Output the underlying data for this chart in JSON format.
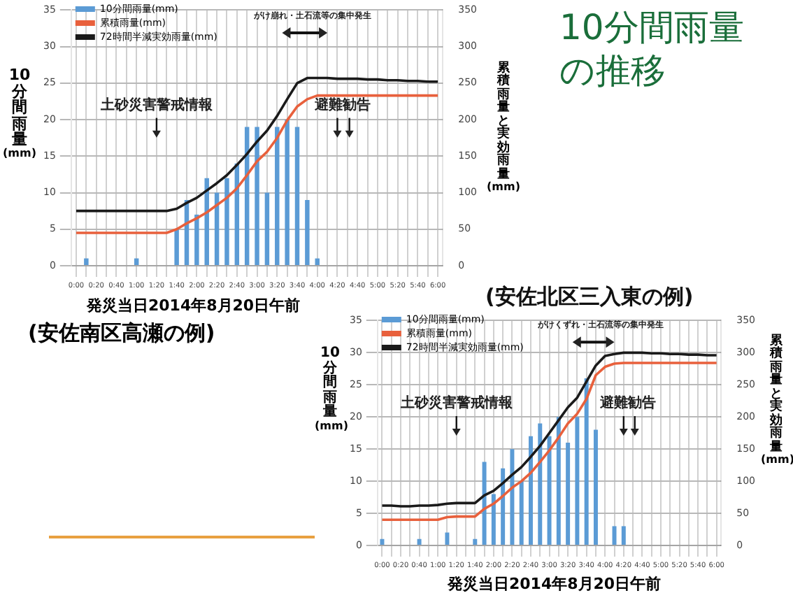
{
  "chart_data": [
    {
      "type": "bar",
      "subtitle": "(安佐南区高瀬の例)",
      "xlabel": "発災当日2014年8月20日午前",
      "ylabel": "10分間雨量(mm)",
      "y2label": "累積雨量と実効雨量(mm)",
      "categories": [
        "0:00",
        null,
        "0:20",
        null,
        "0:40",
        null,
        "1:00",
        null,
        "1:20",
        null,
        "1:40",
        null,
        "2:00",
        null,
        "2:20",
        null,
        "2:40",
        null,
        "3:00",
        null,
        "3:20",
        null,
        "3:40",
        null,
        "4:00",
        null,
        "4:20",
        null,
        "4:40",
        null,
        "5:00",
        null,
        "5:20",
        null,
        "5:40",
        null,
        "6:00"
      ],
      "series": [
        {
          "name": "10分間雨量(mm)",
          "type": "bar",
          "color": "#5b9bd5",
          "values": [
            0,
            1,
            0,
            0,
            0,
            0,
            1,
            0,
            0,
            0,
            5,
            9,
            7,
            12,
            10,
            12,
            14,
            19,
            19,
            10,
            19,
            20,
            19,
            9,
            1,
            0,
            0,
            0,
            0,
            0,
            0,
            0,
            0,
            0,
            0,
            0,
            0
          ]
        },
        {
          "name": "累積雨量(mm)",
          "type": "line",
          "axis": "y2",
          "color": "#e8603c",
          "values": [
            45,
            45,
            45,
            45,
            45,
            45,
            45,
            45,
            45,
            45,
            50,
            58,
            65,
            73,
            83,
            93,
            106,
            124,
            143,
            156,
            175,
            199,
            218,
            228,
            233,
            233,
            233,
            233,
            233,
            233,
            233,
            233,
            233,
            233,
            233,
            233,
            233
          ]
        },
        {
          "name": "72時間半減実効雨量(mm)",
          "type": "line",
          "axis": "y2",
          "color": "#1a1a1a",
          "values": [
            75,
            75,
            75,
            75,
            75,
            75,
            75,
            75,
            75,
            75,
            78,
            86,
            93,
            103,
            113,
            124,
            138,
            153,
            170,
            185,
            205,
            228,
            250,
            257,
            257,
            257,
            256,
            256,
            256,
            255,
            255,
            254,
            254,
            253,
            253,
            252,
            252
          ]
        }
      ],
      "ylim": [
        0,
        35
      ],
      "yticks": [
        0,
        5,
        10,
        15,
        20,
        25,
        30,
        35
      ],
      "y2lim": [
        0,
        350
      ],
      "y2ticks": [
        0,
        50,
        100,
        150,
        200,
        250,
        300,
        350
      ],
      "grid": true,
      "legend": "top left",
      "marker": "none",
      "annotations": [
        "がけ崩れ・土石流等の集中発生",
        "土砂災害警戒情報",
        "避難勧告"
      ]
    },
    {
      "type": "other",
      "title": "10分間雨量の推移"
    },
    {
      "type": "bar",
      "title": "(安佐北区三入東の例)",
      "xlabel": "発災当日2014年8月20日午前",
      "ylabel": "10分間雨量(mm)",
      "y2label": "累積雨量と実効雨量(mm)",
      "categories": [
        "0:00",
        null,
        "0:20",
        null,
        "0:40",
        null,
        "1:00",
        null,
        "1:20",
        null,
        "1:40",
        null,
        "2:00",
        null,
        "2:20",
        null,
        "2:40",
        null,
        "3:00",
        null,
        "3:20",
        null,
        "3:40",
        null,
        "4:00",
        null,
        "4:20",
        null,
        "4:40",
        null,
        "5:00",
        null,
        "5:20",
        null,
        "5:40",
        null,
        "6:00"
      ],
      "series": [
        {
          "name": "10分間雨量(mm)",
          "type": "bar",
          "color": "#5b9bd5",
          "values": [
            1,
            0,
            0,
            0,
            1,
            0,
            0,
            2,
            0,
            0,
            1,
            13,
            8,
            12,
            15,
            10,
            17,
            19,
            17,
            20,
            16,
            20,
            26,
            18,
            0,
            3,
            3,
            0,
            0,
            0,
            0,
            0,
            0,
            0,
            0,
            0,
            0
          ]
        },
        {
          "name": "累積雨量(mm)",
          "type": "line",
          "axis": "y2",
          "color": "#e8603c",
          "values": [
            40,
            40,
            40,
            40,
            40,
            40,
            40,
            44,
            45,
            45,
            45,
            57,
            65,
            77,
            90,
            100,
            113,
            130,
            148,
            168,
            190,
            205,
            228,
            265,
            278,
            283,
            284,
            284,
            284,
            284,
            284,
            284,
            284,
            284,
            284,
            284,
            284
          ]
        },
        {
          "name": "72時間半減実効雨量(mm)",
          "type": "line",
          "axis": "y2",
          "color": "#1a1a1a",
          "values": [
            62,
            62,
            61,
            61,
            62,
            62,
            63,
            65,
            66,
            66,
            66,
            78,
            85,
            97,
            110,
            122,
            138,
            155,
            175,
            195,
            215,
            230,
            255,
            280,
            295,
            298,
            300,
            300,
            300,
            299,
            299,
            298,
            298,
            297,
            297,
            296,
            296
          ]
        }
      ],
      "ylim": [
        0,
        35
      ],
      "yticks": [
        0,
        5,
        10,
        15,
        20,
        25,
        30,
        35
      ],
      "y2lim": [
        0,
        350
      ],
      "y2ticks": [
        0,
        50,
        100,
        150,
        200,
        250,
        300,
        350
      ],
      "grid": true,
      "legend": "top left",
      "marker": "none",
      "annotations": [
        "がけくずれ・土石流等の集中発生",
        "土砂災害警戒情報",
        "避難勧告"
      ]
    }
  ]
}
